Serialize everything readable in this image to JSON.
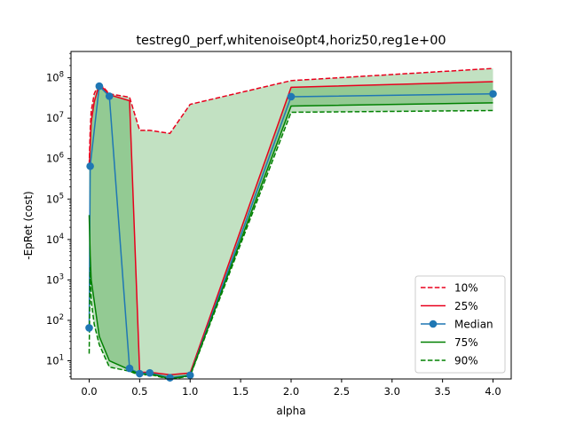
{
  "chart_data": {
    "type": "line",
    "title": "testreg0_perf,whitenoise0pt4,horiz50,reg1e+00",
    "xlabel": "alpha",
    "ylabel": "-EpRet (cost)",
    "xlim": [
      -0.18,
      4.18
    ],
    "ylim_log10": [
      0.55,
      8.65
    ],
    "y_scale": "log",
    "grid": false,
    "legend_position": "lower right",
    "x_ticks": [
      0.0,
      0.5,
      1.0,
      1.5,
      2.0,
      2.5,
      3.0,
      3.5,
      4.0
    ],
    "x_tick_labels": [
      "0.0",
      "0.5",
      "1.0",
      "1.5",
      "2.0",
      "2.5",
      "3.0",
      "3.5",
      "4.0"
    ],
    "y_ticks": [
      10,
      100,
      1000,
      10000,
      100000,
      1000000,
      10000000,
      100000000
    ],
    "y_tick_labels": [
      "10^1",
      "10^2",
      "10^3",
      "10^4",
      "10^5",
      "10^6",
      "10^7",
      "10^8"
    ],
    "x": [
      0.0,
      0.01,
      0.02,
      0.05,
      0.1,
      0.2,
      0.4,
      0.5,
      0.6,
      0.8,
      1.0,
      2.0,
      4.0
    ],
    "series": [
      {
        "name": "10%",
        "color": "#e8001d",
        "style": "dashed",
        "values": [
          700000,
          5000000,
          15000000,
          40000000,
          75000000,
          40000000,
          33000000,
          5000000,
          5000000,
          4200000,
          22000000,
          85000000,
          170000000
        ]
      },
      {
        "name": "25%",
        "color": "#e8001d",
        "style": "solid",
        "values": [
          600000,
          2000000,
          8000000,
          25000000,
          70000000,
          38000000,
          27000000,
          5.2,
          5.2,
          4.5,
          5.0,
          58000000,
          80000000
        ]
      },
      {
        "name": "Median",
        "color": "#1f77b4",
        "style": "solid-marker",
        "values": [
          65,
          650000,
          null,
          null,
          62000000,
          35000000,
          6.5,
          4.8,
          5.0,
          3.8,
          4.4,
          34000000,
          40000000
        ]
      },
      {
        "name": "75%",
        "color": "#008000",
        "style": "solid",
        "values": [
          40000,
          4000,
          1000,
          300,
          40,
          10,
          6,
          4.6,
          4.8,
          3.6,
          4.3,
          20000000,
          24000000
        ]
      },
      {
        "name": "90%",
        "color": "#008000",
        "style": "dashed",
        "values": [
          15,
          2000,
          300,
          80,
          25,
          7,
          5.5,
          4.4,
          4.6,
          3.5,
          4.2,
          14000000,
          15500000
        ]
      }
    ]
  }
}
